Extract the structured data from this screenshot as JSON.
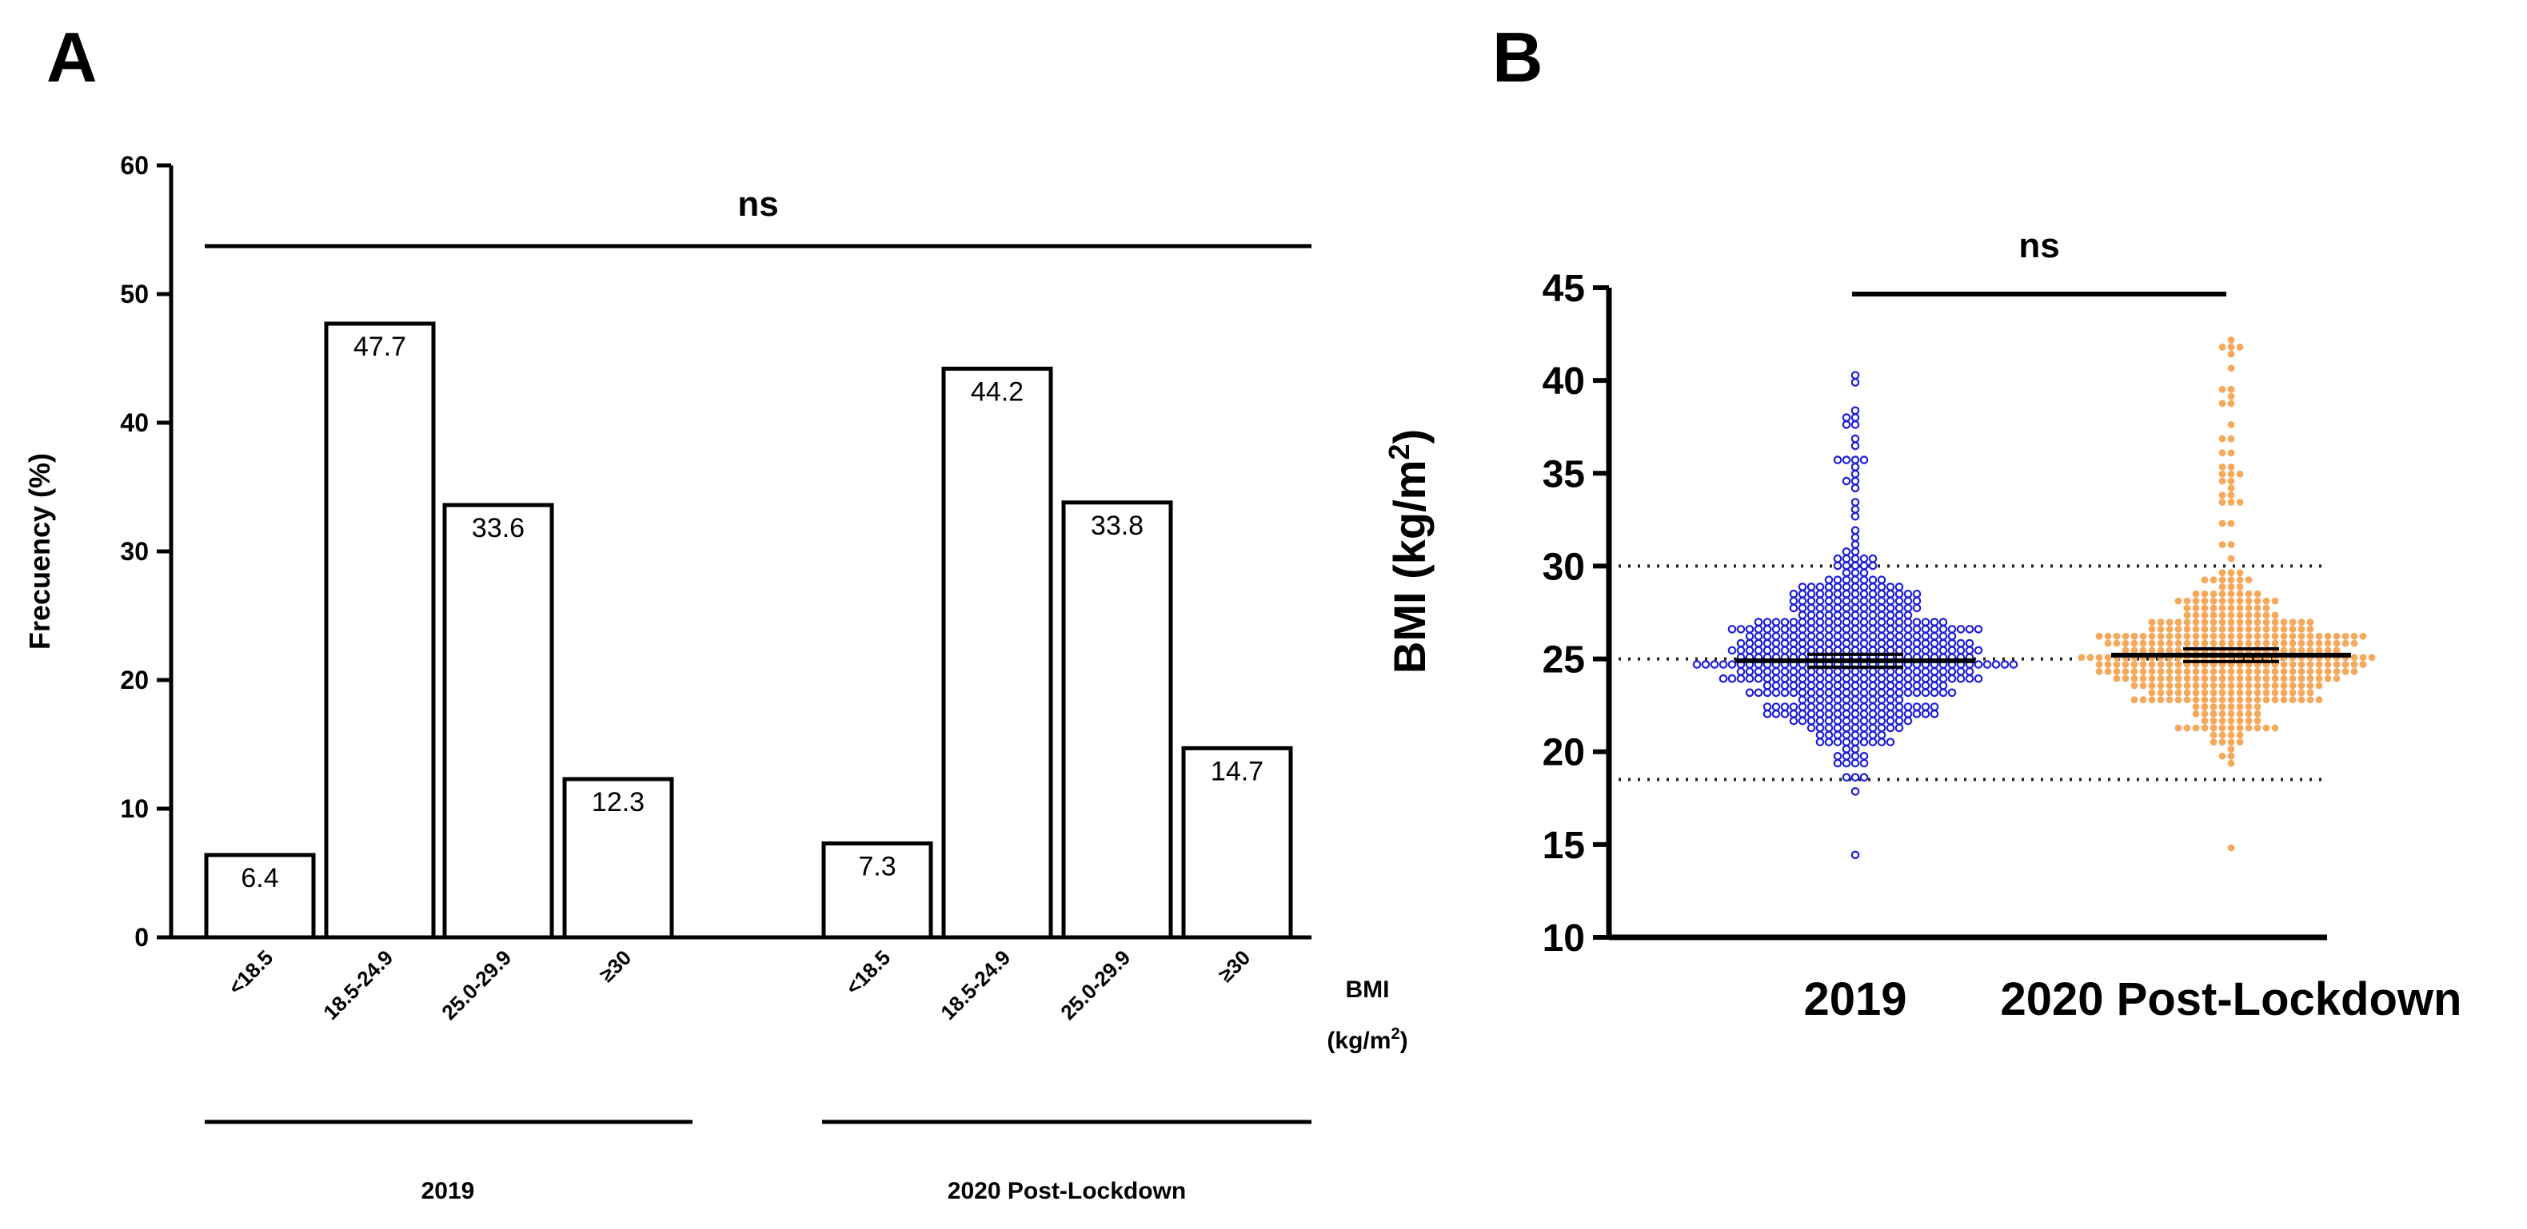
{
  "panel_a_letter": "A",
  "panel_b_letter": "B",
  "chart_data": [
    {
      "type": "bar",
      "panel": "A",
      "ylabel": "Frecuency (%)",
      "ylim": [
        0,
        60
      ],
      "yticks": [
        "0",
        "10",
        "20",
        "30",
        "40",
        "50",
        "60"
      ],
      "xlabel_line1": "BMI",
      "xlabel_line2": "(kg/m",
      "xlabel_sup": "2",
      "xlabel_close": ")",
      "significance": "ns",
      "groups": [
        {
          "name": "2019",
          "categories": [
            "<18.5",
            "18.5-24.9",
            "25.0-29.9",
            "≥30"
          ],
          "values": [
            6.4,
            47.7,
            33.6,
            12.3
          ],
          "labels": [
            "6.4",
            "47.7",
            "33.6",
            "12.3"
          ]
        },
        {
          "name": "2020 Post-Lockdown",
          "categories": [
            "<18.5",
            "18.5-24.9",
            "25.0-29.9",
            "≥30"
          ],
          "values": [
            7.3,
            44.2,
            33.8,
            14.7
          ],
          "labels": [
            "7.3",
            "44.2",
            "33.8",
            "14.7"
          ]
        }
      ]
    },
    {
      "type": "scatter",
      "panel": "B",
      "ylabel_main": "BMI (kg/m",
      "ylabel_sup": "2",
      "ylabel_close": ")",
      "ylim": [
        10,
        45
      ],
      "yticks": [
        "10",
        "15",
        "20",
        "25",
        "30",
        "35",
        "40",
        "45"
      ],
      "reference_lines": [
        18.5,
        25,
        30
      ],
      "significance": "ns",
      "series": [
        {
          "name": "2019",
          "color": "#1f1fd6",
          "marker": "open-circle",
          "mean": 24.9,
          "min": 14.5,
          "max": 40.2,
          "n": 520
        },
        {
          "name": "2020 Post-Lockdown",
          "color": "#f5a95c",
          "marker": "filled-circle",
          "mean": 25.2,
          "min": 15.0,
          "max": 42.1,
          "n": 440
        }
      ]
    }
  ]
}
